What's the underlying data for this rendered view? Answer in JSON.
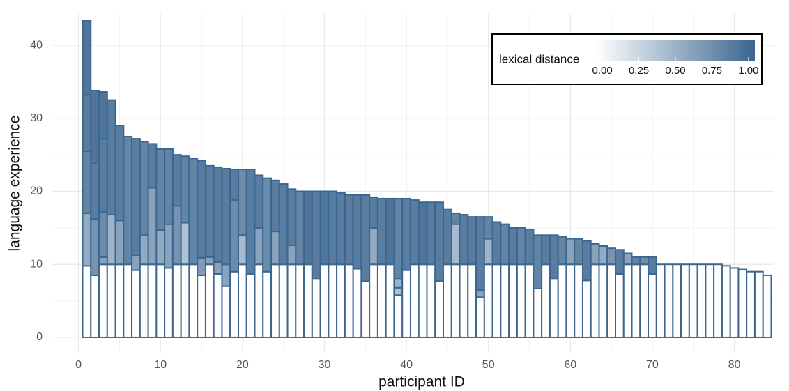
{
  "chart_data": {
    "type": "stacked-bar",
    "x_label": "participant ID",
    "y_label": "language experience",
    "xlim": [
      -3.2,
      84.8
    ],
    "xticks": [
      0,
      10,
      20,
      30,
      40,
      50,
      60,
      70,
      80
    ],
    "xminor": [
      5,
      15,
      25,
      35,
      45,
      55,
      65,
      75
    ],
    "ylim": [
      -2.2,
      44.3
    ],
    "yticks": [
      0,
      10,
      20,
      30,
      40
    ],
    "yminor": [
      5,
      15,
      25,
      35
    ],
    "grid": true,
    "bar_outline": "#3b6690",
    "color_scale": {
      "title": "lexical distance",
      "low": "#ffffff",
      "high": "#3b6690",
      "limits": [
        0,
        1
      ],
      "ticks": [
        {
          "value": 0,
          "label": "0.00"
        },
        {
          "value": 0.25,
          "label": "0.25"
        },
        {
          "value": 0.5,
          "label": "0.50"
        },
        {
          "value": 0.75,
          "label": "0.75"
        },
        {
          "value": 1,
          "label": "1.00"
        }
      ]
    },
    "stacks": [
      {
        "x": 1,
        "values": [
          9.8,
          7.2,
          8.5,
          7.7,
          10.2
        ],
        "distances": [
          0,
          0.55,
          0.8,
          0.85,
          0.9
        ]
      },
      {
        "x": 2,
        "values": [
          8.5,
          7.7,
          7.6,
          10
        ],
        "distances": [
          0,
          0.7,
          0.85,
          0.9
        ]
      },
      {
        "x": 3,
        "values": [
          10,
          1,
          6.2,
          10,
          6.4
        ],
        "distances": [
          0,
          0.6,
          0.75,
          0.85,
          0.9
        ]
      },
      {
        "x": 4,
        "values": [
          10,
          6.8,
          15.7
        ],
        "distances": [
          0,
          0.5,
          0.85
        ]
      },
      {
        "x": 5,
        "values": [
          10,
          6,
          13
        ],
        "distances": [
          0,
          0.6,
          0.85
        ]
      },
      {
        "x": 6,
        "values": [
          10,
          17.5
        ],
        "distances": [
          0,
          0.8
        ]
      },
      {
        "x": 7,
        "values": [
          9.2,
          2,
          16
        ],
        "distances": [
          0,
          0.6,
          0.85
        ]
      },
      {
        "x": 8,
        "values": [
          10,
          4,
          12.8
        ],
        "distances": [
          0,
          0.55,
          0.8
        ]
      },
      {
        "x": 9,
        "values": [
          10,
          10.5,
          6
        ],
        "distances": [
          0,
          0.6,
          0.85
        ]
      },
      {
        "x": 10,
        "values": [
          10,
          4.7,
          11.1
        ],
        "distances": [
          0,
          0.55,
          0.8
        ]
      },
      {
        "x": 11,
        "values": [
          9.5,
          6,
          10.3
        ],
        "distances": [
          0,
          0.6,
          0.8
        ]
      },
      {
        "x": 12,
        "values": [
          10,
          8,
          7
        ],
        "distances": [
          0,
          0.7,
          0.85
        ]
      },
      {
        "x": 13,
        "values": [
          10,
          5.7,
          9.1
        ],
        "distances": [
          0,
          0.4,
          0.8
        ]
      },
      {
        "x": 14,
        "values": [
          10,
          14.5
        ],
        "distances": [
          0,
          0.8
        ]
      },
      {
        "x": 15,
        "values": [
          8.5,
          2.4,
          13.3
        ],
        "distances": [
          0,
          0.65,
          0.85
        ]
      },
      {
        "x": 16,
        "values": [
          10,
          1,
          12.5
        ],
        "distances": [
          0,
          0.6,
          0.85
        ]
      },
      {
        "x": 17,
        "values": [
          8.7,
          1.6,
          13
        ],
        "distances": [
          0,
          0.6,
          0.85
        ]
      },
      {
        "x": 18,
        "values": [
          7,
          3,
          13.1
        ],
        "distances": [
          0,
          0.6,
          0.85
        ]
      },
      {
        "x": 19,
        "values": [
          9,
          9.8,
          4.2
        ],
        "distances": [
          0,
          0.75,
          0.85
        ]
      },
      {
        "x": 20,
        "values": [
          10,
          4,
          9
        ],
        "distances": [
          0,
          0.45,
          0.75
        ]
      },
      {
        "x": 21,
        "values": [
          8.7,
          14.3
        ],
        "distances": [
          0,
          0.85
        ]
      },
      {
        "x": 22,
        "values": [
          10,
          5,
          7.2
        ],
        "distances": [
          0,
          0.6,
          0.85
        ]
      },
      {
        "x": 23,
        "values": [
          9,
          12.8
        ],
        "distances": [
          0,
          0.75
        ]
      },
      {
        "x": 24,
        "values": [
          10,
          4.5,
          7
        ],
        "distances": [
          0,
          0.6,
          0.85
        ]
      },
      {
        "x": 25,
        "values": [
          10,
          11
        ],
        "distances": [
          0,
          0.85
        ]
      },
      {
        "x": 26,
        "values": [
          10,
          2.6,
          7.7
        ],
        "distances": [
          0,
          0.6,
          0.85
        ]
      },
      {
        "x": 27,
        "values": [
          10,
          10
        ],
        "distances": [
          0,
          0.8
        ]
      },
      {
        "x": 28,
        "values": [
          10,
          10
        ],
        "distances": [
          0,
          0.9
        ]
      },
      {
        "x": 29,
        "values": [
          8,
          12
        ],
        "distances": [
          0,
          0.85
        ]
      },
      {
        "x": 30,
        "values": [
          10,
          10
        ],
        "distances": [
          0,
          0.9
        ]
      },
      {
        "x": 31,
        "values": [
          10,
          10
        ],
        "distances": [
          0,
          0.85
        ]
      },
      {
        "x": 32,
        "values": [
          10,
          9.8
        ],
        "distances": [
          0,
          0.85
        ]
      },
      {
        "x": 33,
        "values": [
          10,
          9.5
        ],
        "distances": [
          0,
          0.85
        ]
      },
      {
        "x": 34,
        "values": [
          9.4,
          10.1
        ],
        "distances": [
          0,
          0.85
        ]
      },
      {
        "x": 35,
        "values": [
          7.7,
          11.8
        ],
        "distances": [
          0,
          0.85
        ]
      },
      {
        "x": 36,
        "values": [
          10,
          5,
          4.2
        ],
        "distances": [
          0,
          0.55,
          0.85
        ]
      },
      {
        "x": 37,
        "values": [
          10,
          9
        ],
        "distances": [
          0,
          0.85
        ]
      },
      {
        "x": 38,
        "values": [
          10,
          9
        ],
        "distances": [
          0,
          0.9
        ]
      },
      {
        "x": 39,
        "values": [
          5.8,
          1,
          1.2,
          11
        ],
        "distances": [
          0,
          0.4,
          0.5,
          0.8
        ]
      },
      {
        "x": 40,
        "values": [
          9.2,
          9.8
        ],
        "distances": [
          0,
          0.85
        ]
      },
      {
        "x": 41,
        "values": [
          10,
          8.8
        ],
        "distances": [
          0,
          0.85
        ]
      },
      {
        "x": 42,
        "values": [
          10,
          8.5
        ],
        "distances": [
          0,
          0.9
        ]
      },
      {
        "x": 43,
        "values": [
          10,
          8.5
        ],
        "distances": [
          0,
          0.85
        ]
      },
      {
        "x": 44,
        "values": [
          7.7,
          10.8
        ],
        "distances": [
          0,
          0.85
        ]
      },
      {
        "x": 45,
        "values": [
          10,
          7.5
        ],
        "distances": [
          0,
          0.85
        ]
      },
      {
        "x": 46,
        "values": [
          10,
          5.5,
          1.5
        ],
        "distances": [
          0,
          0.45,
          0.8
        ]
      },
      {
        "x": 47,
        "values": [
          10,
          6.8
        ],
        "distances": [
          0,
          0.85
        ]
      },
      {
        "x": 48,
        "values": [
          10,
          6.5
        ],
        "distances": [
          0,
          0.85
        ]
      },
      {
        "x": 49,
        "values": [
          5.5,
          1,
          10
        ],
        "distances": [
          0,
          0.6,
          0.85
        ]
      },
      {
        "x": 50,
        "values": [
          10,
          3.5,
          3
        ],
        "distances": [
          0,
          0.5,
          0.8
        ]
      },
      {
        "x": 51,
        "values": [
          10,
          5.8
        ],
        "distances": [
          0,
          0.85
        ]
      },
      {
        "x": 52,
        "values": [
          10,
          5.5
        ],
        "distances": [
          0,
          0.8
        ]
      },
      {
        "x": 53,
        "values": [
          10,
          5
        ],
        "distances": [
          0,
          0.85
        ]
      },
      {
        "x": 54,
        "values": [
          10,
          5
        ],
        "distances": [
          0,
          0.8
        ]
      },
      {
        "x": 55,
        "values": [
          10,
          4.8
        ],
        "distances": [
          0,
          0.85
        ]
      },
      {
        "x": 56,
        "values": [
          6.7,
          7.3
        ],
        "distances": [
          0,
          0.8
        ]
      },
      {
        "x": 57,
        "values": [
          10,
          4
        ],
        "distances": [
          0,
          0.85
        ]
      },
      {
        "x": 58,
        "values": [
          8,
          6
        ],
        "distances": [
          0,
          0.85
        ]
      },
      {
        "x": 59,
        "values": [
          10,
          3.8
        ],
        "distances": [
          0,
          0.8
        ]
      },
      {
        "x": 60,
        "values": [
          10,
          3.5
        ],
        "distances": [
          0,
          0.6
        ]
      },
      {
        "x": 61,
        "values": [
          10,
          3.5
        ],
        "distances": [
          0,
          0.8
        ]
      },
      {
        "x": 62,
        "values": [
          7.8,
          5.4
        ],
        "distances": [
          0,
          0.85
        ]
      },
      {
        "x": 63,
        "values": [
          10,
          2.8
        ],
        "distances": [
          0,
          0.6
        ]
      },
      {
        "x": 64,
        "values": [
          10,
          2.5
        ],
        "distances": [
          0,
          0.55
        ]
      },
      {
        "x": 65,
        "values": [
          10,
          2.2
        ],
        "distances": [
          0,
          0.7
        ]
      },
      {
        "x": 66,
        "values": [
          8.7,
          3.3
        ],
        "distances": [
          0,
          0.85
        ]
      },
      {
        "x": 67,
        "values": [
          10,
          1.5
        ],
        "distances": [
          0,
          0.6
        ]
      },
      {
        "x": 68,
        "values": [
          10,
          1
        ],
        "distances": [
          0,
          0.8
        ]
      },
      {
        "x": 69,
        "values": [
          10,
          1
        ],
        "distances": [
          0,
          0.75
        ]
      },
      {
        "x": 70,
        "values": [
          8.7,
          2.3
        ],
        "distances": [
          0,
          0.85
        ]
      },
      {
        "x": 71,
        "values": [
          10
        ],
        "distances": [
          0
        ]
      },
      {
        "x": 72,
        "values": [
          10
        ],
        "distances": [
          0
        ]
      },
      {
        "x": 73,
        "values": [
          10
        ],
        "distances": [
          0
        ]
      },
      {
        "x": 74,
        "values": [
          10
        ],
        "distances": [
          0
        ]
      },
      {
        "x": 75,
        "values": [
          10
        ],
        "distances": [
          0
        ]
      },
      {
        "x": 76,
        "values": [
          10
        ],
        "distances": [
          0
        ]
      },
      {
        "x": 77,
        "values": [
          10
        ],
        "distances": [
          0
        ]
      },
      {
        "x": 78,
        "values": [
          10
        ],
        "distances": [
          0
        ]
      },
      {
        "x": 79,
        "values": [
          9.8
        ],
        "distances": [
          0
        ]
      },
      {
        "x": 80,
        "values": [
          9.5
        ],
        "distances": [
          0
        ]
      },
      {
        "x": 81,
        "values": [
          9.3
        ],
        "distances": [
          0
        ]
      },
      {
        "x": 82,
        "values": [
          9
        ],
        "distances": [
          0
        ]
      },
      {
        "x": 83,
        "values": [
          9
        ],
        "distances": [
          0
        ]
      },
      {
        "x": 84,
        "values": [
          8.5
        ],
        "distances": [
          0
        ]
      }
    ]
  }
}
